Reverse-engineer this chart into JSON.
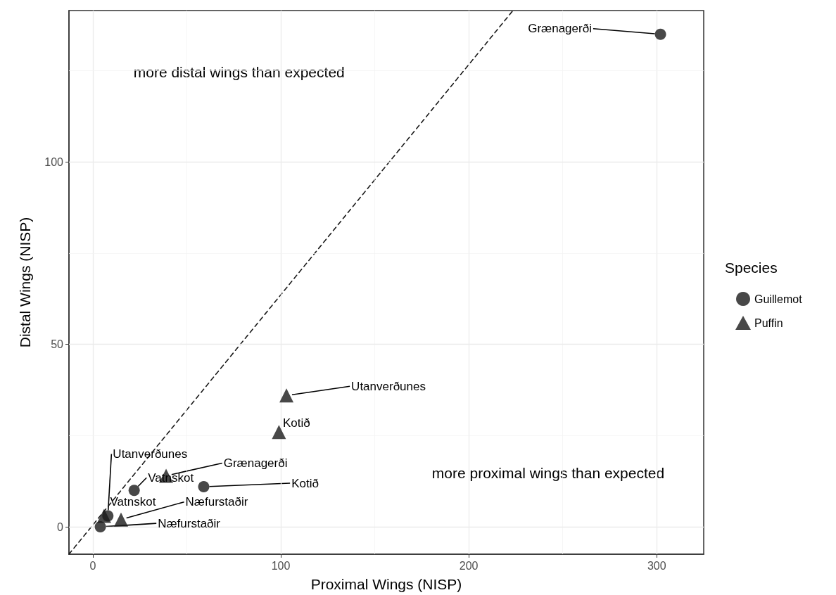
{
  "chart_data": {
    "type": "scatter",
    "xlabel": "Proximal Wings (NISP)",
    "ylabel": "Distal Wings (NISP)",
    "legend_title": "Species",
    "legend": "right",
    "grid": true,
    "xlim": [
      -12.7,
      325
    ],
    "xticks": [
      0,
      100,
      200,
      300
    ],
    "ylim": [
      -7.5,
      141.5
    ],
    "yticks": [
      0,
      50,
      100
    ],
    "series": [
      {
        "name": "Guillemot",
        "color": "#1a1a1a",
        "marker": "circle",
        "x": [
          302,
          59,
          22,
          8,
          4
        ],
        "values": [
          135,
          11,
          10,
          3,
          0
        ]
      },
      {
        "name": "Puffin",
        "color": "#1a1a1a",
        "marker": "triangle",
        "x": [
          103,
          99,
          39,
          6,
          15
        ],
        "values": [
          36,
          26,
          14,
          3,
          2
        ]
      },
      {
        "type": "line",
        "color": "#1a1a1a",
        "marker": "none",
        "line_style": "dashed",
        "x": [
          -12.7,
          223.5
        ],
        "values": [
          -7.5,
          141.5
        ]
      }
    ],
    "annotations": [
      {
        "text": "Grænagerði",
        "x": 302,
        "y": 135
      },
      {
        "text": "Kotið",
        "x": 59,
        "y": 11
      },
      {
        "text": "Vatnskot",
        "x": 22,
        "y": 10
      },
      {
        "text": "Utanverðunes",
        "x": 8,
        "y": 3
      },
      {
        "text": "Næfurstaðir",
        "x": 4,
        "y": 0
      },
      {
        "text": "Utanverðunes",
        "x": 103,
        "y": 36
      },
      {
        "text": "Kotið",
        "x": 99,
        "y": 26
      },
      {
        "text": "Grænagerði",
        "x": 39,
        "y": 14
      },
      {
        "text": "Vatnskot",
        "x": 6,
        "y": 3
      },
      {
        "text": "Næfurstaðir",
        "x": 15,
        "y": 2
      },
      "more distal wings than expected",
      "more proximal wings than expected"
    ]
  }
}
